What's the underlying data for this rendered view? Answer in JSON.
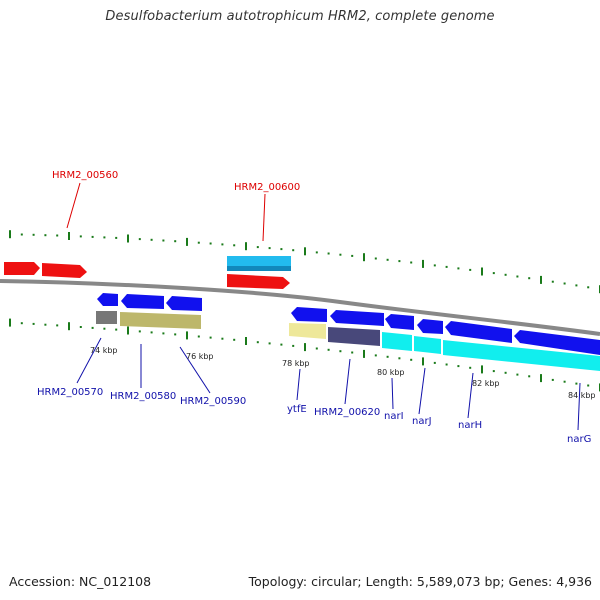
{
  "title": "Desulfobacterium autotrophicum HRM2, complete genome",
  "footer": {
    "accession": "Accession: NC_012108",
    "summary": "Topology: circular; Length: 5,589,073 bp; Genes: 4,936"
  },
  "colors": {
    "backbone": "#888888",
    "tick": "#1a7a1a",
    "forward_cds": "#ee1111",
    "forward_rna": "#22bbee",
    "reverse_cds": "#1111ee",
    "reverse_rna_cyan": "#11eeee",
    "reverse_khaki": "#bdb76b",
    "reverse_gray": "#777777",
    "reverse_pale": "#eee89a",
    "reverse_slate": "#48487a",
    "label_forward": "#dd0000",
    "label_reverse": "#1111aa"
  },
  "kbp_labels": [
    "74 kbp",
    "76 kbp",
    "78 kbp",
    "80 kbp",
    "82 kbp",
    "84 kbp"
  ],
  "gene_labels_forward": [
    "HRM2_00560",
    "HRM2_00600"
  ],
  "gene_labels_reverse": [
    "HRM2_00570",
    "HRM2_00580",
    "HRM2_00590",
    "ytfE",
    "HRM2_00620",
    "narI",
    "narJ",
    "narH",
    "narG"
  ]
}
